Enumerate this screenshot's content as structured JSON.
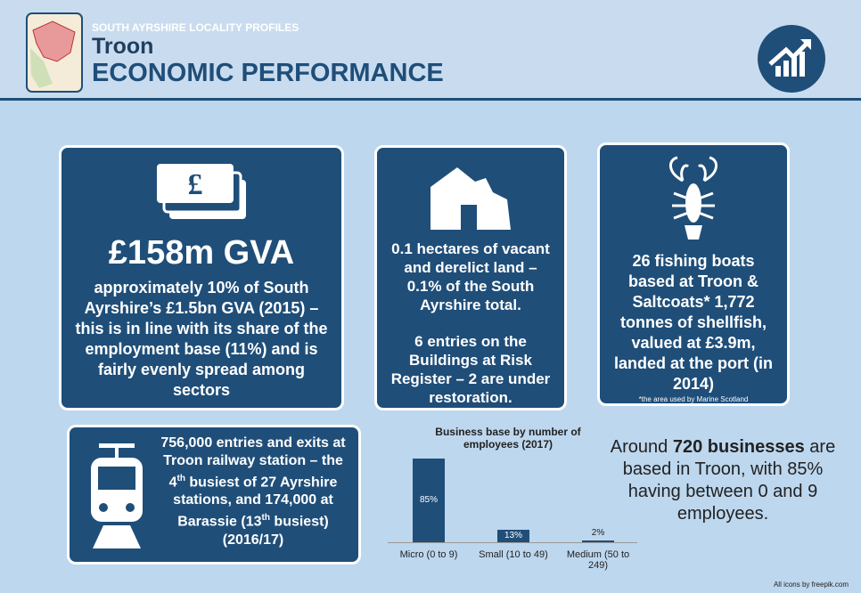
{
  "header": {
    "kicker": "SOUTH AYRSHIRE LOCALITY PROFILES",
    "place": "Troon",
    "title": "ECONOMIC PERFORMANCE"
  },
  "cards": {
    "gva": {
      "headline": "£158m GVA",
      "text": "approximately 10% of South Ayrshire’s £1.5bn GVA (2015) – this is in line with its share of the employment base (11%) and is fairly evenly spread among sectors"
    },
    "land": {
      "text1": "0.1 hectares of vacant and derelict land – 0.1% of the South Ayrshire total.",
      "text2": "6 entries on the Buildings at Risk Register – 2 are under restoration."
    },
    "fishing": {
      "text": "26 fishing boats based at Troon & Saltcoats* 1,772 tonnes of shellfish, valued at £3.9m, landed at the port (in 2014)",
      "note": "*the area used by Marine Scotland"
    },
    "rail": {
      "parts": [
        "756,000 entries and exits at Troon railway station – the 4",
        "th",
        " busiest of 27 Ayrshire stations, and 174,000 at Barassie (13",
        "th",
        " busiest) (2016/17)"
      ]
    }
  },
  "chart_data": {
    "type": "bar",
    "title": "Business base by number of employees (2017)",
    "categories": [
      "Micro (0 to 9)",
      "Small (10 to 49)",
      "Medium (50 to 249)"
    ],
    "values": [
      85,
      13,
      2
    ],
    "value_labels": [
      "85%",
      "13%",
      "2%"
    ],
    "color": "#1f4e79"
  },
  "summary": {
    "before": "Around ",
    "bold": "720 businesses",
    "after": " are based in Troon, with 85% having between 0 and 9 employees."
  },
  "footer": "All icons by freepik.com"
}
